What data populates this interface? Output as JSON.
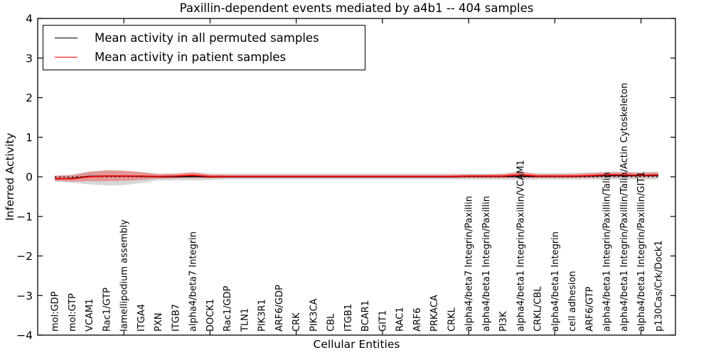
{
  "figure": {
    "title": "Paxillin-dependent events mediated by a4b1 -- 404 samples",
    "xlabel": "Cellular Entities",
    "ylabel": "Inferred Activity"
  },
  "legend": {
    "entries": [
      {
        "label": "Mean activity in all permuted samples",
        "color": "#000000"
      },
      {
        "label": "Mean activity in patient samples",
        "color": "#ff0000"
      }
    ],
    "position": "upper left"
  },
  "chart_data": {
    "type": "line",
    "title": "Paxillin-dependent events mediated by a4b1 -- 404 samples",
    "xlabel": "Cellular Entities",
    "ylabel": "Inferred Activity",
    "ylim": [
      -4,
      4
    ],
    "yticks": [
      -4,
      -3,
      -2,
      -1,
      0,
      1,
      2,
      3,
      4
    ],
    "xtick_positions": [
      5,
      10,
      15,
      20,
      25,
      30,
      35
    ],
    "grid": false,
    "legend_position": "upper left",
    "zero_line": {
      "y": 0,
      "style": "dotted",
      "color": "#000000"
    },
    "categories": [
      "mol:GDP",
      "mol:GTP",
      "VCAM1",
      "Rac1/GTP",
      "lamellipodium assembly",
      "ITGA4",
      "PXN",
      "ITGB7",
      "alpha4/beta7 Integrin",
      "DOCK1",
      "Rac1/GDP",
      "TLN1",
      "PIK3R1",
      "ARF6/GDP",
      "CRK",
      "PIK3CA",
      "CBL",
      "ITGB1",
      "BCAR1",
      "GIT1",
      "RAC1",
      "ARF6",
      "PRKACA",
      "CRKL",
      "alpha4/beta7 Integrin/Paxillin",
      "alpha4/beta1 Integrin/Paxillin",
      "PI3K",
      "alpha4/beta1 Integrin/Paxillin/VCAM1",
      "CRKL/CBL",
      "alpha4/beta1 Integrin",
      "cell adhesion",
      "ARF6/GTP",
      "alpha4/beta1 Integrin/Paxillin/Talin",
      "alpha4/beta1 Integrin/Paxillin/Talin/Actin Cytoskeleton",
      "alpha4/beta1 Integrin/Paxillin/GIT1",
      "p130Cas/Crk/Dock1"
    ],
    "series": [
      {
        "name": "Mean activity in all permuted samples",
        "color": "#000000",
        "line_style": "solid",
        "values": [
          -0.05,
          -0.04,
          0.01,
          0.02,
          0.02,
          0.01,
          0,
          0,
          0.01,
          0,
          0,
          0,
          0,
          0,
          0,
          0,
          0,
          0,
          0,
          0,
          0,
          0,
          0,
          0,
          0.01,
          0.01,
          0.01,
          0.01,
          0.01,
          0.01,
          0.01,
          0.02,
          0.03,
          0.03,
          0.03,
          0.03
        ],
        "band_upper": [
          0.02,
          0.06,
          0.14,
          0.17,
          0.16,
          0.12,
          0.08,
          0.08,
          0.1,
          0.08,
          0.08,
          0.08,
          0.08,
          0.08,
          0.08,
          0.08,
          0.08,
          0.08,
          0.08,
          0.08,
          0.08,
          0.08,
          0.08,
          0.08,
          0.08,
          0.08,
          0.08,
          0.1,
          0.09,
          0.09,
          0.1,
          0.11,
          0.13,
          0.13,
          0.12,
          0.13
        ],
        "band_lower": [
          -0.12,
          -0.15,
          -0.19,
          -0.22,
          -0.21,
          -0.16,
          -0.09,
          -0.09,
          -0.09,
          -0.08,
          -0.07,
          -0.07,
          -0.07,
          -0.07,
          -0.07,
          -0.07,
          -0.07,
          -0.07,
          -0.07,
          -0.07,
          -0.07,
          -0.07,
          -0.07,
          -0.07,
          -0.07,
          -0.07,
          -0.07,
          -0.08,
          -0.07,
          -0.07,
          -0.07,
          -0.07,
          -0.07,
          -0.07,
          -0.07,
          -0.07
        ],
        "band_fill": "rgba(130,130,130,0.32)"
      },
      {
        "name": "Mean activity in patient samples",
        "color": "#ff0000",
        "line_style": "solid",
        "values": [
          -0.04,
          -0.05,
          0,
          0.02,
          0.02,
          0.02,
          0.01,
          0.02,
          0.04,
          0.01,
          0.01,
          0.01,
          0.01,
          0.01,
          0.01,
          0.01,
          0.01,
          0.01,
          0.01,
          0.01,
          0.01,
          0.01,
          0.01,
          0.01,
          0.02,
          0.02,
          0.02,
          0.05,
          0.02,
          0.02,
          0.02,
          0.03,
          0.05,
          0.05,
          0.04,
          0.05
        ],
        "band_upper": [
          0.03,
          0.04,
          0.12,
          0.16,
          0.15,
          0.12,
          0.07,
          0.08,
          0.12,
          0.06,
          0.05,
          0.05,
          0.05,
          0.05,
          0.05,
          0.05,
          0.05,
          0.05,
          0.05,
          0.05,
          0.05,
          0.05,
          0.05,
          0.05,
          0.06,
          0.06,
          0.07,
          0.14,
          0.07,
          0.07,
          0.07,
          0.09,
          0.11,
          0.11,
          0.1,
          0.11
        ],
        "band_lower": [
          -0.1,
          -0.12,
          -0.11,
          -0.11,
          -0.1,
          -0.08,
          -0.05,
          -0.04,
          -0.03,
          -0.04,
          -0.03,
          -0.03,
          -0.03,
          -0.03,
          -0.03,
          -0.03,
          -0.03,
          -0.03,
          -0.03,
          -0.03,
          -0.03,
          -0.03,
          -0.03,
          -0.03,
          -0.03,
          -0.03,
          -0.03,
          -0.03,
          -0.03,
          -0.03,
          -0.03,
          -0.03,
          -0.01,
          -0.01,
          -0.01,
          -0.01
        ],
        "band_fill": "rgba(255,0,0,0.30)"
      }
    ]
  },
  "colors": {
    "background": "#ffffff",
    "axis": "#000000",
    "tick_label": "#000000"
  }
}
